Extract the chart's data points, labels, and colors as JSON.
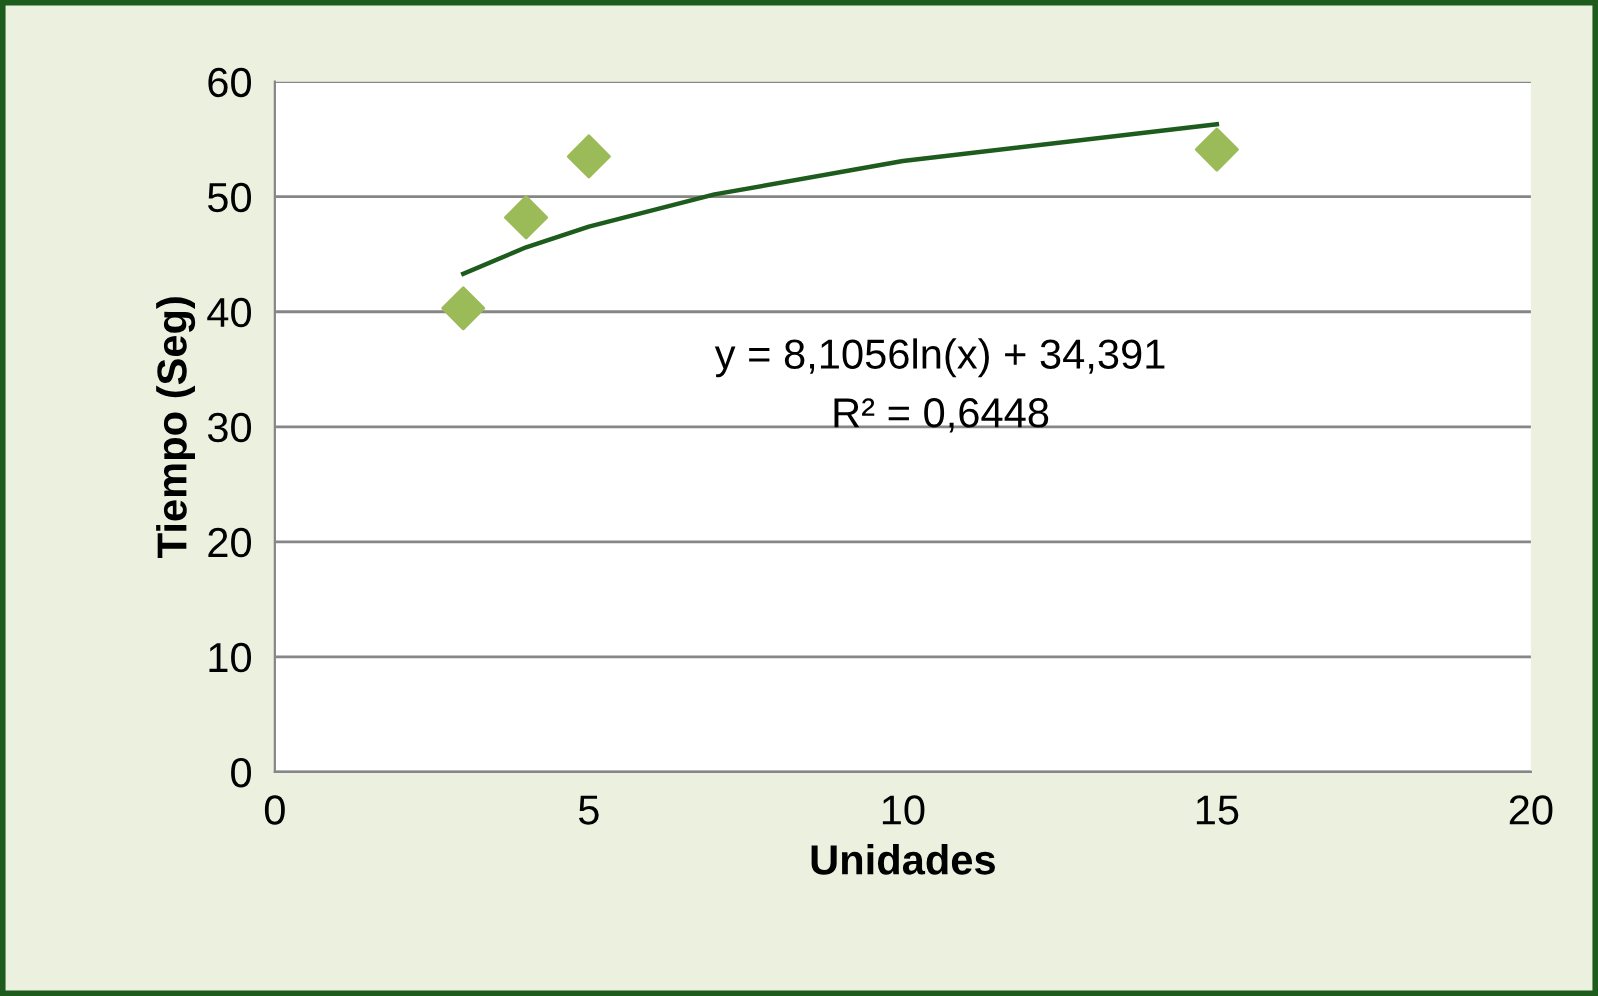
{
  "chart_data": {
    "type": "scatter",
    "xlabel": "Unidades",
    "ylabel": "Tiempo (Seg)",
    "xlim": [
      0,
      20
    ],
    "xticks": [
      0,
      5,
      10,
      15,
      20
    ],
    "ylim": [
      0,
      60
    ],
    "yticks": [
      0,
      10,
      20,
      30,
      40,
      50,
      60
    ],
    "grid": "y",
    "series": [
      {
        "marker": "diamond",
        "color": "#9bbb59",
        "x": [
          3,
          4,
          5,
          15
        ],
        "values": [
          40.3,
          48.2,
          53.5,
          54.1
        ]
      },
      {
        "type": "line",
        "color": "#1e5c1e",
        "x": [
          3,
          4,
          5,
          7,
          10,
          15
        ],
        "values": [
          43.3,
          45.6,
          47.4,
          50.2,
          53.1,
          56.3
        ]
      }
    ],
    "annotations": [
      "y = 8,1056ln(x) + 34,391",
      "R² = 0,6448"
    ]
  }
}
